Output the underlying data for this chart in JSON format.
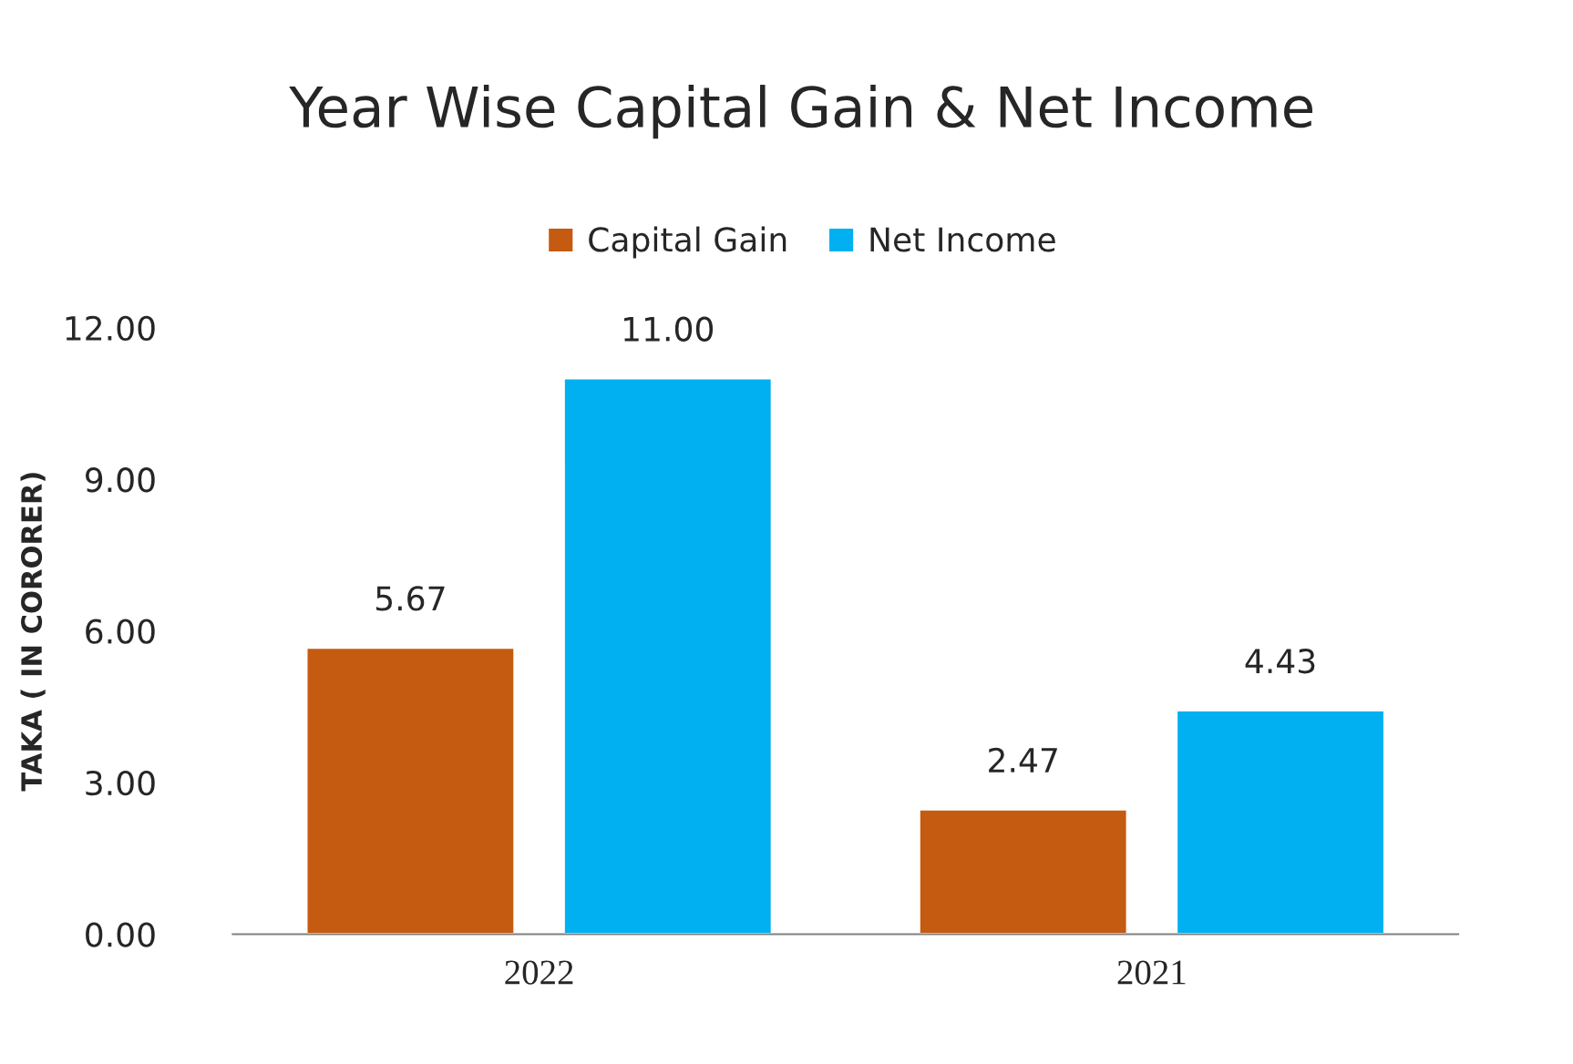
{
  "chart_data": {
    "type": "bar",
    "title": "Year Wise Capital Gain & Net Income",
    "ylabel": "TAKA ( IN CORORER)",
    "categories": [
      "2022",
      "2021"
    ],
    "series": [
      {
        "name": "Capital Gain",
        "color": "#c55a11",
        "values": [
          5.67,
          2.47
        ],
        "value_labels": [
          "5.67",
          "2.47"
        ]
      },
      {
        "name": "Net Income",
        "color": "#00b0f0",
        "values": [
          11.0,
          4.43
        ],
        "value_labels": [
          "11.00",
          "4.43"
        ]
      }
    ],
    "ylim": [
      0,
      12
    ],
    "yticks": [
      {
        "value": 0,
        "label": "0.00"
      },
      {
        "value": 3,
        "label": "3.00"
      },
      {
        "value": 6,
        "label": "6.00"
      },
      {
        "value": 9,
        "label": "9.00"
      },
      {
        "value": 12,
        "label": "12.00"
      }
    ],
    "grid": false,
    "legend": "top"
  }
}
